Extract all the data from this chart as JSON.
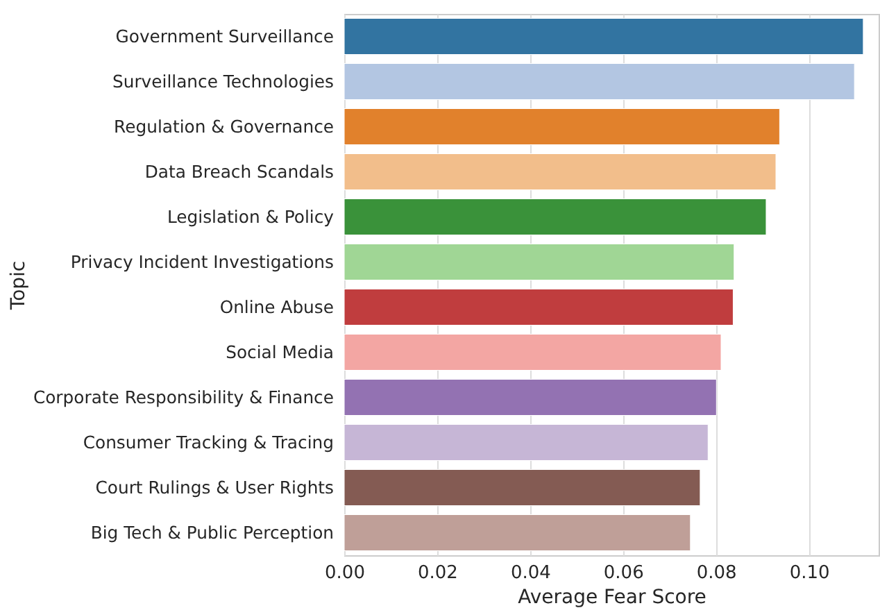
{
  "chart_data": {
    "type": "bar",
    "orientation": "horizontal",
    "xlabel": "Average Fear Score",
    "ylabel": "Topic",
    "categories": [
      "Government Surveillance",
      "Surveillance Technologies",
      "Regulation & Governance",
      "Data Breach Scandals",
      "Legislation & Policy",
      "Privacy Incident Investigations",
      "Online Abuse",
      "Social Media",
      "Corporate Responsibility & Finance",
      "Consumer Tracking & Tracing",
      "Court Rulings & User Rights",
      "Big Tech & Public Perception"
    ],
    "values": [
      0.1117,
      0.1098,
      0.0937,
      0.0929,
      0.0908,
      0.0839,
      0.0837,
      0.0811,
      0.0801,
      0.0783,
      0.0766,
      0.0745
    ],
    "colors": [
      "#3274a1",
      "#b3c6e2",
      "#e1812c",
      "#f2be8b",
      "#3a923a",
      "#a0d695",
      "#c03d3e",
      "#f3a6a3",
      "#9372b2",
      "#c6b6d6",
      "#845b53",
      "#bf9f98"
    ],
    "xlim": [
      0,
      0.115
    ],
    "xticks": [
      {
        "value": 0,
        "label": "0.00"
      },
      {
        "value": 0.02,
        "label": "0.02"
      },
      {
        "value": 0.04,
        "label": "0.04"
      },
      {
        "value": 0.06,
        "label": "0.06"
      },
      {
        "value": 0.08,
        "label": "0.08"
      },
      {
        "value": 0.1,
        "label": "0.10"
      }
    ],
    "grid": "x"
  }
}
